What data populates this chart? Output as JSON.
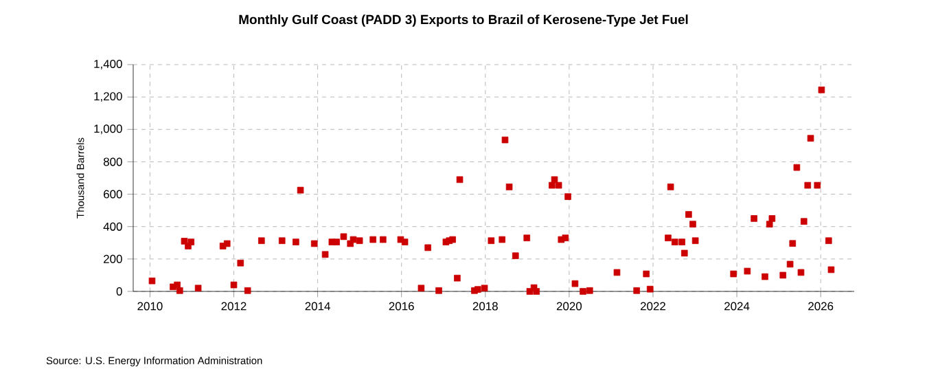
{
  "chart_data": {
    "type": "scatter",
    "title": "Monthly Gulf Coast (PADD 3) Exports to Brazil of Kerosene-Type Jet Fuel",
    "ylabel": "Thousand Barrels",
    "annotations": [
      "Source: U.S. Energy Information Administration"
    ],
    "x": [
      2010.05,
      2010.55,
      2010.65,
      2010.71,
      2010.82,
      2010.91,
      2010.98,
      2011.15,
      2011.74,
      2011.84,
      2012.0,
      2012.16,
      2012.33,
      2012.66,
      2013.15,
      2013.48,
      2013.59,
      2013.92,
      2014.18,
      2014.34,
      2014.45,
      2014.62,
      2014.78,
      2014.85,
      2015.0,
      2015.32,
      2015.56,
      2015.98,
      2016.08,
      2016.47,
      2016.63,
      2016.89,
      2017.06,
      2017.14,
      2017.22,
      2017.33,
      2017.39,
      2017.74,
      2017.82,
      2017.98,
      2018.14,
      2018.4,
      2018.47,
      2018.57,
      2018.72,
      2018.99,
      2019.06,
      2019.16,
      2019.22,
      2019.59,
      2019.65,
      2019.75,
      2019.81,
      2019.91,
      2019.97,
      2020.14,
      2020.33,
      2020.49,
      2021.14,
      2021.61,
      2021.84,
      2021.93,
      2022.36,
      2022.42,
      2022.52,
      2022.69,
      2022.75,
      2022.85,
      2022.95,
      2023.01,
      2023.92,
      2024.25,
      2024.41,
      2024.67,
      2024.78,
      2024.84,
      2025.1,
      2025.27,
      2025.33,
      2025.43,
      2025.53,
      2025.6,
      2025.69,
      2025.76,
      2025.92,
      2026.02,
      2026.19,
      2026.25
    ],
    "values": [
      65,
      28,
      40,
      5,
      310,
      280,
      305,
      20,
      280,
      295,
      40,
      175,
      5,
      313,
      313,
      305,
      625,
      295,
      228,
      305,
      305,
      338,
      295,
      320,
      313,
      320,
      320,
      320,
      305,
      20,
      270,
      5,
      305,
      313,
      320,
      82,
      690,
      5,
      12,
      20,
      313,
      320,
      935,
      645,
      220,
      330,
      0,
      23,
      0,
      655,
      690,
      655,
      320,
      330,
      585,
      48,
      0,
      5,
      117,
      5,
      108,
      14,
      330,
      645,
      305,
      305,
      236,
      475,
      415,
      313,
      108,
      125,
      450,
      91,
      415,
      450,
      100,
      168,
      296,
      765,
      117,
      432,
      655,
      945,
      655,
      1244,
      313,
      134
    ],
    "color": "#cc0000",
    "marker": "square",
    "grid": true,
    "line_style": "dashed",
    "xlim": [
      2009.6,
      2026.8
    ],
    "ylim": [
      0,
      1400
    ],
    "xticks": [
      2010,
      2012,
      2014,
      2016,
      2018,
      2020,
      2022,
      2024,
      2026
    ],
    "yticks": [
      {
        "value": 0,
        "label": "0"
      },
      {
        "value": 200,
        "label": "200"
      },
      {
        "value": 400,
        "label": "400"
      },
      {
        "value": 600,
        "label": "600"
      },
      {
        "value": 800,
        "label": "800"
      },
      {
        "value": 1000,
        "label": "1,000"
      },
      {
        "value": 1200,
        "label": "1,200"
      },
      {
        "value": 1400,
        "label": "1,400"
      }
    ]
  }
}
